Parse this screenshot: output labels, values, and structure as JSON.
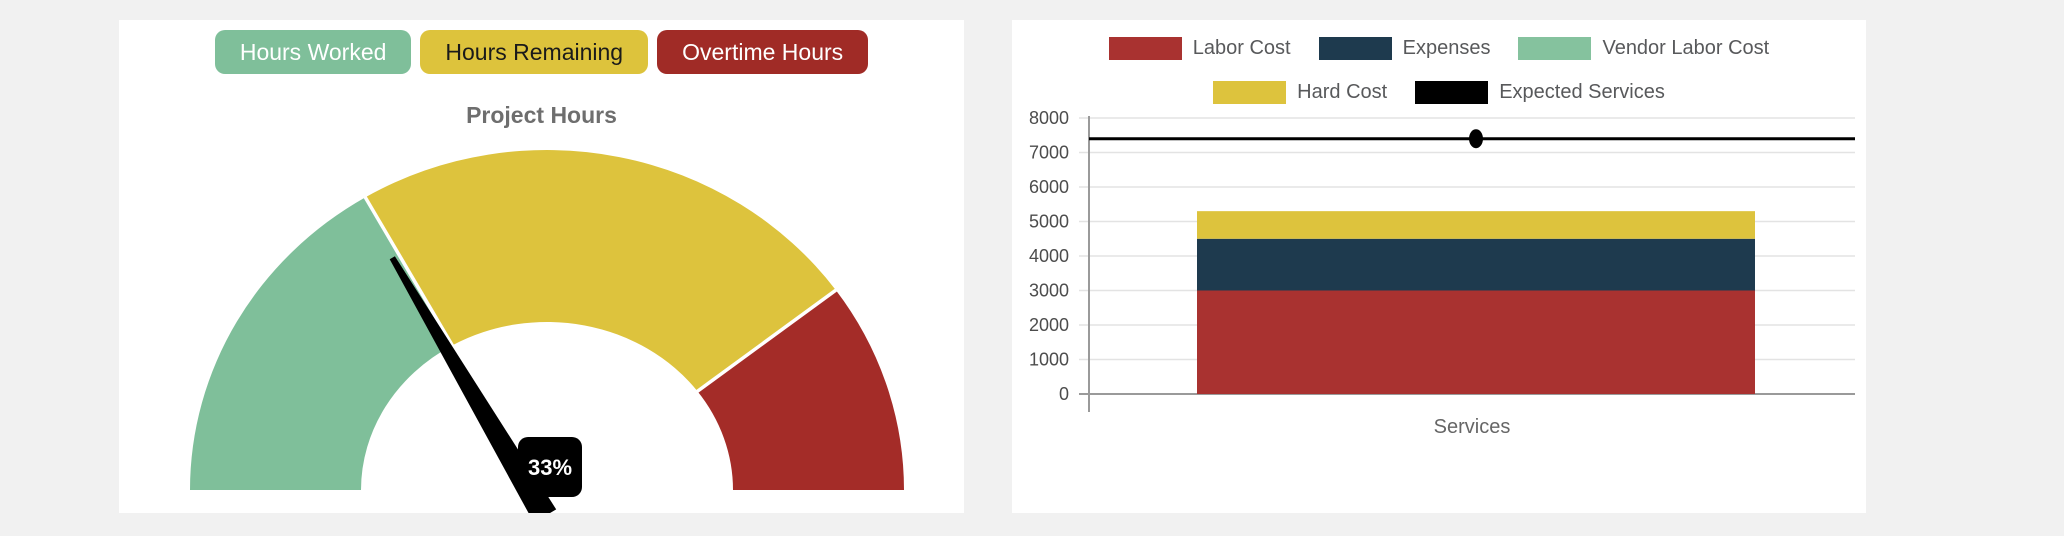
{
  "page": {
    "background": "#f1f1f1",
    "card_background": "#ffffff"
  },
  "gauge_panel": {
    "title": "Project Hours",
    "title_color": "#6e6e6e",
    "buttons": [
      {
        "label": "Hours Worked",
        "bg": "#7fbf9a",
        "text_color": "#ffffff"
      },
      {
        "label": "Hours Remaining",
        "bg": "#ddc33c",
        "text_color": "#1a1a1a"
      },
      {
        "label": "Overtime Hours",
        "bg": "#a02b26",
        "text_color": "#ffffff"
      }
    ],
    "needle_label": "33%",
    "needle_badge_bg": "#000000",
    "needle_badge_text_color": "#ffffff"
  },
  "bar_panel": {
    "legend_rows": [
      [
        {
          "label": "Labor Cost",
          "color": "#a93230"
        },
        {
          "label": "Expenses",
          "color": "#1e3a4e"
        },
        {
          "label": "Vendor Labor Cost",
          "color": "#85c29e"
        }
      ],
      [
        {
          "label": "Hard Cost",
          "color": "#ddc33d"
        },
        {
          "label": "Expected Services",
          "color": "#000000"
        }
      ]
    ],
    "xlabel": "Services",
    "axis_text_color": "#4c4c4c",
    "xlabel_color": "#666666",
    "grid_color": "#e3e3e3",
    "axis_line_color": "#9a9a9a"
  },
  "chart_data": [
    {
      "type": "gauge",
      "title": "Project Hours",
      "unit": "%",
      "needle_value": 33,
      "needle_label": "33%",
      "segments": [
        {
          "label": "Hours Worked",
          "value": 33,
          "color": "#7fbf9a"
        },
        {
          "label": "Hours Remaining",
          "value": 47,
          "color": "#ddc33d"
        },
        {
          "label": "Overtime Hours",
          "value": 20,
          "color": "#a42c28"
        }
      ]
    },
    {
      "type": "bar",
      "stacked": true,
      "categories": [
        "Services"
      ],
      "series": [
        {
          "name": "Labor Cost",
          "values": [
            3000
          ],
          "color": "#a93230"
        },
        {
          "name": "Expenses",
          "values": [
            1500
          ],
          "color": "#1e3a4e"
        },
        {
          "name": "Vendor Labor Cost",
          "values": [
            0
          ],
          "color": "#85c29e"
        },
        {
          "name": "Hard Cost",
          "values": [
            800
          ],
          "color": "#ddc33d"
        }
      ],
      "line_series": [
        {
          "name": "Expected Services",
          "values": [
            7400
          ],
          "color": "#000000",
          "marker": "dot"
        }
      ],
      "xlabel": "Services",
      "ylim": [
        0,
        8000
      ],
      "ytick_step": 1000,
      "grid": true,
      "legend_position": "top"
    }
  ]
}
